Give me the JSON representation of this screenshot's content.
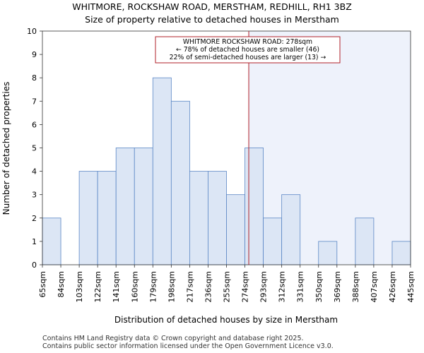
{
  "chart_data": {
    "type": "histogram",
    "title": "WHITMORE, ROCKSHAW ROAD, MERSTHAM, REDHILL, RH1 3BZ",
    "subtitle": "Size of property relative to detached houses in Merstham",
    "xlabel": "Distribution of detached houses by size in Merstham",
    "ylabel": "Number of detached properties",
    "ylim": [
      0,
      10
    ],
    "y_ticks": [
      0,
      1,
      2,
      3,
      4,
      5,
      6,
      7,
      8,
      9,
      10
    ],
    "bin_edges": [
      65,
      84,
      103,
      122,
      141,
      160,
      179,
      198,
      217,
      236,
      255,
      274,
      293,
      312,
      331,
      350,
      369,
      388,
      407,
      426,
      445
    ],
    "x_tick_labels": [
      "65sqm",
      "84sqm",
      "103sqm",
      "122sqm",
      "141sqm",
      "160sqm",
      "179sqm",
      "198sqm",
      "217sqm",
      "236sqm",
      "255sqm",
      "274sqm",
      "293sqm",
      "312sqm",
      "331sqm",
      "350sqm",
      "369sqm",
      "388sqm",
      "407sqm",
      "426sqm",
      "445sqm"
    ],
    "values": [
      2,
      0,
      4,
      4,
      5,
      5,
      8,
      7,
      4,
      4,
      3,
      5,
      2,
      3,
      0,
      1,
      0,
      2,
      0,
      1
    ],
    "marker": {
      "value": 278,
      "lines": [
        "WHITMORE ROCKSHAW ROAD: 278sqm",
        "← 78% of detached houses are smaller (46)",
        "22% of semi-detached houses are larger (13) →"
      ]
    },
    "footer": [
      "Contains HM Land Registry data © Crown copyright and database right 2025.",
      "Contains public sector information licensed under the Open Government Licence v3.0."
    ],
    "colors": {
      "bar_fill": "#dce6f5",
      "bar_stroke": "#5b87c5",
      "marker_line": "#b0202a",
      "highlight_bg": "#eef2fb"
    }
  }
}
